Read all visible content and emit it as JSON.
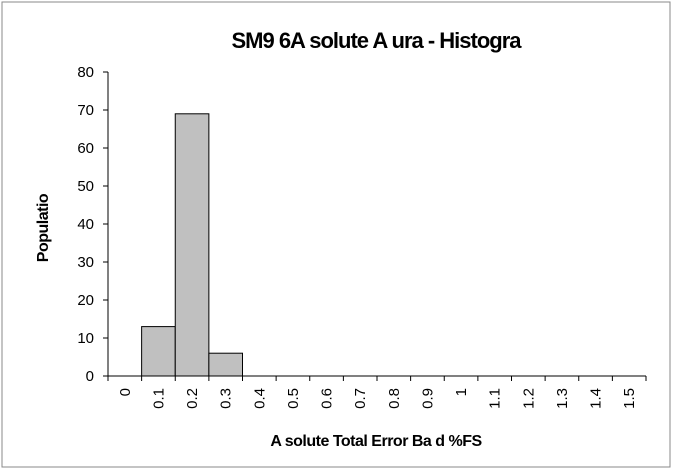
{
  "chart_data": {
    "type": "bar",
    "title": "SM9 6A solute A ura - Histogra",
    "x_label": "A solute Total Error Ba d %FS",
    "y_label": "Populatio",
    "categories": [
      "0",
      "0.1",
      "0.2",
      "0.3",
      "0.4",
      "0.5",
      "0.6",
      "0.7",
      "0.8",
      "0.9",
      "1",
      "1.1",
      "1.2",
      "1.3",
      "1.4",
      "1.5"
    ],
    "values": [
      0,
      13,
      69,
      6,
      0,
      0,
      0,
      0,
      0,
      0,
      0,
      0,
      0,
      0,
      0,
      0
    ],
    "color": "#c0c0c0",
    "ylim": [
      0,
      80
    ],
    "yticks": [
      0,
      10,
      20,
      30,
      40,
      50,
      60,
      70,
      80
    ],
    "grid": false
  }
}
